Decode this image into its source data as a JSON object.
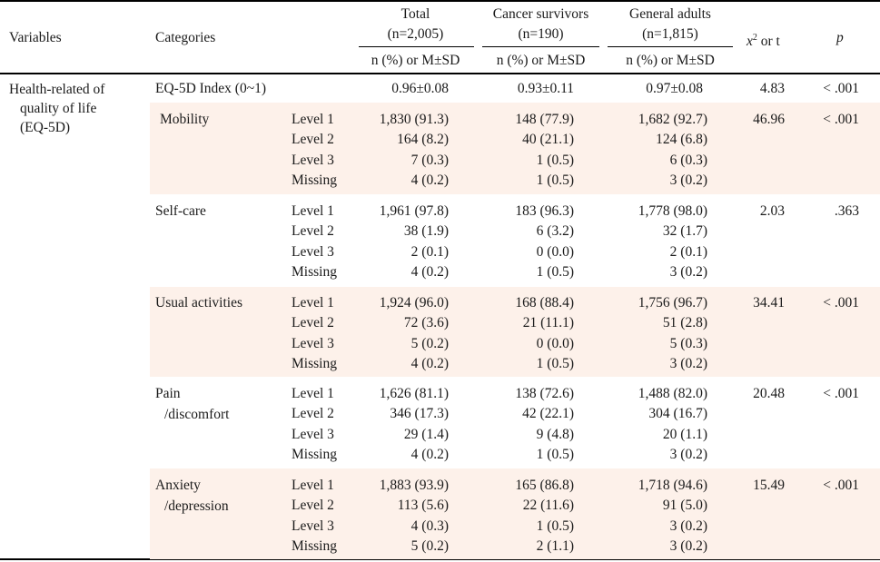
{
  "header": {
    "variables": "Variables",
    "categories": "Categories",
    "total": "Total",
    "total_n": "(n=2,005)",
    "cancer": "Cancer survivors",
    "cancer_n": "(n=190)",
    "general": "General adults",
    "general_n": "(n=1,815)",
    "stat_sym": "x",
    "stat_sup": "2",
    "stat_rest": " or t",
    "p": "p",
    "subheader": "n (%) or M±SD"
  },
  "variable": {
    "line1": "Health-related of",
    "line2": "quality of life",
    "line3": "(EQ-5D)"
  },
  "index_row": {
    "category": "EQ-5D Index (0~1)",
    "total": "0.96±0.08",
    "cancer": "0.93±0.11",
    "general": "0.97±0.08",
    "stat": "4.83",
    "p": "< .001"
  },
  "groups": [
    {
      "category": [
        "Mobility"
      ],
      "stat": "46.96",
      "p": "< .001",
      "rows": [
        {
          "level": "Level 1",
          "total": "1,830 (91.3)",
          "cancer": "148 (77.9)",
          "general": "1,682 (92.7)"
        },
        {
          "level": "Level 2",
          "total": "164 (8.2)",
          "cancer": "40 (21.1)",
          "general": "124 (6.8)"
        },
        {
          "level": "Level 3",
          "total": "7 (0.3)",
          "cancer": "1 (0.5)",
          "general": "6 (0.3)"
        },
        {
          "level": "Missing",
          "total": "4 (0.2)",
          "cancer": "1 (0.5)",
          "general": "3 (0.2)"
        }
      ]
    },
    {
      "category": [
        "Self-care"
      ],
      "stat": "2.03",
      "p": ".363",
      "rows": [
        {
          "level": "Level 1",
          "total": "1,961 (97.8)",
          "cancer": "183 (96.3)",
          "general": "1,778 (98.0)"
        },
        {
          "level": "Level 2",
          "total": "38 (1.9)",
          "cancer": "6 (3.2)",
          "general": "32 (1.7)"
        },
        {
          "level": "Level 3",
          "total": "2 (0.1)",
          "cancer": "0 (0.0)",
          "general": "2 (0.1)"
        },
        {
          "level": "Missing",
          "total": "4 (0.2)",
          "cancer": "1 (0.5)",
          "general": "3 (0.2)"
        }
      ]
    },
    {
      "category": [
        "Usual activities"
      ],
      "stat": "34.41",
      "p": "< .001",
      "rows": [
        {
          "level": "Level 1",
          "total": "1,924 (96.0)",
          "cancer": "168 (88.4)",
          "general": "1,756 (96.7)"
        },
        {
          "level": "Level 2",
          "total": "72 (3.6)",
          "cancer": "21 (11.1)",
          "general": "51 (2.8)"
        },
        {
          "level": "Level 3",
          "total": "5 (0.2)",
          "cancer": "0 (0.0)",
          "general": "5 (0.3)"
        },
        {
          "level": "Missing",
          "total": "4 (0.2)",
          "cancer": "1 (0.5)",
          "general": "3 (0.2)"
        }
      ]
    },
    {
      "category": [
        "Pain",
        "/discomfort"
      ],
      "stat": "20.48",
      "p": "< .001",
      "rows": [
        {
          "level": "Level 1",
          "total": "1,626 (81.1)",
          "cancer": "138 (72.6)",
          "general": "1,488 (82.0)"
        },
        {
          "level": "Level 2",
          "total": "346 (17.3)",
          "cancer": "42 (22.1)",
          "general": "304 (16.7)"
        },
        {
          "level": "Level 3",
          "total": "29 (1.4)",
          "cancer": "9 (4.8)",
          "general": "20 (1.1)"
        },
        {
          "level": "Missing",
          "total": "4 (0.2)",
          "cancer": "1 (0.5)",
          "general": "3 (0.2)"
        }
      ]
    },
    {
      "category": [
        "Anxiety",
        "/depression"
      ],
      "stat": "15.49",
      "p": "< .001",
      "rows": [
        {
          "level": "Level 1",
          "total": "1,883 (93.9)",
          "cancer": "165 (86.8)",
          "general": "1,718 (94.6)"
        },
        {
          "level": "Level 2",
          "total": "113 (5.6)",
          "cancer": "22 (11.6)",
          "general": "91 (5.0)"
        },
        {
          "level": "Level 3",
          "total": "4 (0.3)",
          "cancer": "1 (0.5)",
          "general": "3 (0.2)"
        },
        {
          "level": "Missing",
          "total": "5 (0.2)",
          "cancer": "2 (1.1)",
          "general": "3 (0.2)"
        }
      ]
    }
  ]
}
